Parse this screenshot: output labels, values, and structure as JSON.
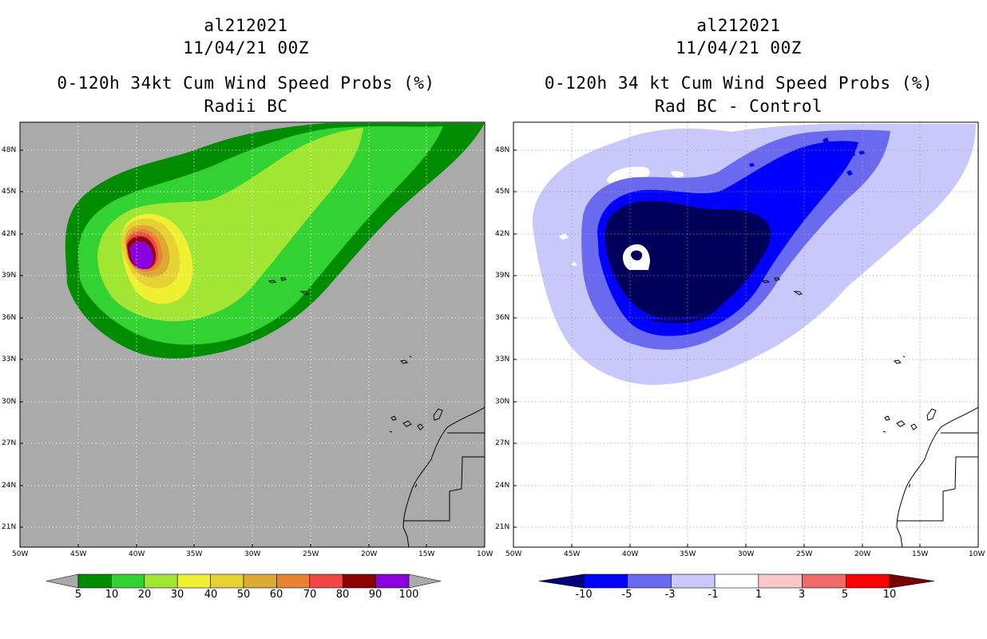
{
  "panels": [
    {
      "id": "left",
      "title1": "al212021",
      "title2": "11/04/21 00Z",
      "title3": "0-120h 34kt Cum Wind Speed Probs (%)",
      "title4": "Radii BC",
      "background": "#aaaaaa",
      "colorbar": {
        "labels": [
          "5",
          "10",
          "20",
          "30",
          "40",
          "50",
          "60",
          "70",
          "80",
          "90",
          "100"
        ],
        "colors": [
          "#008c00",
          "#32d232",
          "#a0e632",
          "#f0f032",
          "#e6d232",
          "#dcaa32",
          "#e68232",
          "#f04646",
          "#8c0000",
          "#8c00dc"
        ],
        "end_left": "#aaaaaa",
        "end_right": "#aaaaaa"
      }
    },
    {
      "id": "right",
      "title1": "al212021",
      "title2": "11/04/21 00Z",
      "title3": "0-120h 34 kt Cum Wind Speed Probs (%)",
      "title4": "Rad BC - Control",
      "background": "#ffffff",
      "colorbar": {
        "labels": [
          "-10",
          "-5",
          "-3",
          "-1",
          "1",
          "3",
          "5",
          "10"
        ],
        "colors": [
          "#0000ff",
          "#6a6af0",
          "#c8c8fa",
          "#ffffff",
          "#fac8c8",
          "#f06a6a",
          "#ff0000"
        ],
        "end_left": "#00007a",
        "end_right": "#7a0000"
      }
    }
  ],
  "axes": {
    "lat_labels": [
      "48N",
      "45N",
      "42N",
      "39N",
      "36N",
      "33N",
      "30N",
      "27N",
      "24N",
      "21N"
    ],
    "lon_labels": [
      "50W",
      "45W",
      "40W",
      "35W",
      "30W",
      "25W",
      "20W",
      "15W",
      "10W"
    ]
  }
}
